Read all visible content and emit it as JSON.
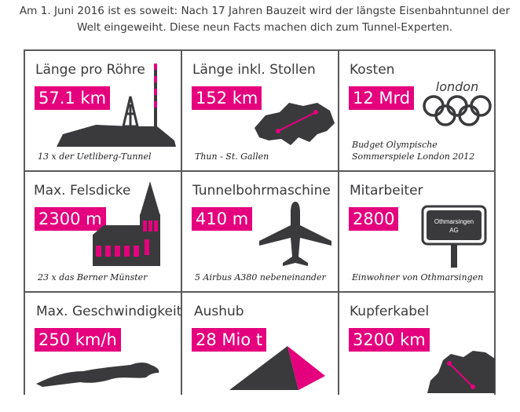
{
  "intro": "Am 1. Juni 2016 ist es soweit: Nach 17 Jahren Bauzeit wird der längste Eisenbahntunnel der Welt eingeweiht. Diese neun Facts machen dich zum Tunnel-Experten.",
  "facts": [
    {
      "label": "Länge pro Röhre",
      "value": "57.1 km",
      "caption": "13 x der Uetliberg-Tunnel",
      "icon": "mountain-tower-icon"
    },
    {
      "label": "Länge inkl. Stollen",
      "value": "152 km",
      "caption": "Thun - St. Gallen",
      "icon": "switzerland-map-icon"
    },
    {
      "label": "Kosten",
      "value": "12 Mrd",
      "caption_line1": "Budget Olympische",
      "caption_line2": "Sommerspiele London 2012",
      "logo_text": "london",
      "icon": "olympic-rings-icon"
    },
    {
      "label": "Max. Felsdicke",
      "value": "2300 m",
      "caption": "23 x das Berner Münster",
      "icon": "church-icon"
    },
    {
      "label": "Tunnelbohrmaschine",
      "value": "410 m",
      "caption": "5 Airbus A380 nebeneinander",
      "icon": "airplane-icon"
    },
    {
      "label": "Mitarbeiter",
      "value": "2800",
      "caption": "Einwohner von Othmarsingen",
      "sign_line1": "Othmarsingen",
      "sign_line2": "AG",
      "icon": "town-sign-icon"
    },
    {
      "label": "Max. Geschwindigkeit",
      "value": "250 km/h",
      "icon": "cheetah-icon"
    },
    {
      "label": "Aushub",
      "value": "28 Mio t",
      "icon": "pyramid-icon"
    },
    {
      "label": "Kupferkabel",
      "value": "3200 km",
      "icon": "europe-map-icon"
    }
  ],
  "colors": {
    "accent": "#e5007d",
    "dark": "#3a3a3c",
    "grid": "#5a5a5c"
  }
}
